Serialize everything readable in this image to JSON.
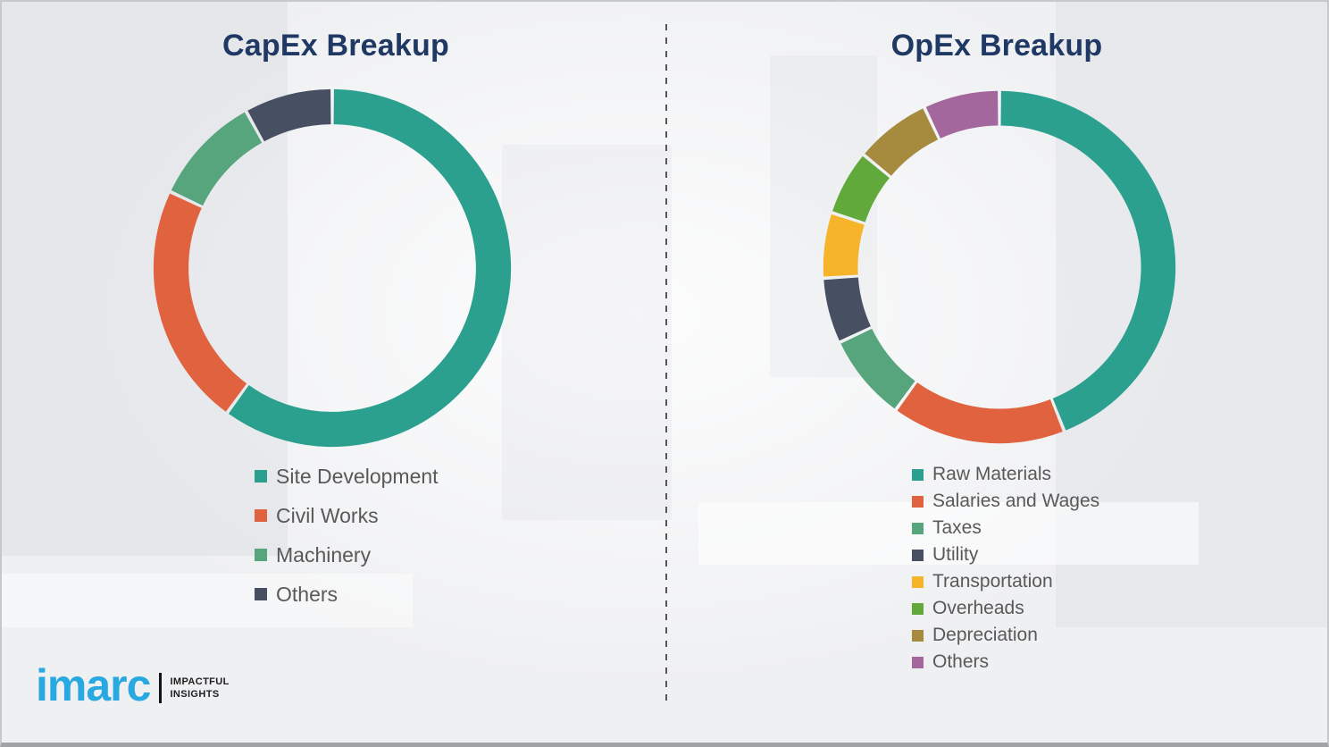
{
  "chart_data": [
    {
      "type": "pie",
      "subtype": "donut",
      "title": "CapEx Breakup",
      "categories": [
        "Site Development",
        "Civil Works",
        "Machinery",
        "Others"
      ],
      "values": [
        60,
        22,
        10,
        8
      ],
      "colors": [
        "#2ba08f",
        "#e0623f",
        "#57a57c",
        "#474f63"
      ],
      "legend_position": "below-left",
      "start_angle_deg": 0,
      "direction": "clockwise"
    },
    {
      "type": "pie",
      "subtype": "donut",
      "title": "OpEx Breakup",
      "categories": [
        "Raw Materials",
        "Salaries and Wages",
        "Taxes",
        "Utility",
        "Transportation",
        "Overheads",
        "Depreciation",
        "Others"
      ],
      "values": [
        44,
        16,
        8,
        6,
        6,
        6,
        7,
        7
      ],
      "colors": [
        "#2ba08f",
        "#e0623f",
        "#57a57c",
        "#474f63",
        "#f6b42a",
        "#62a93c",
        "#a68b3f",
        "#a3669d"
      ],
      "legend_position": "below-left",
      "start_angle_deg": 0,
      "direction": "clockwise"
    }
  ],
  "logo": {
    "brand": "imarc",
    "tagline_line1": "IMPACTFUL",
    "tagline_line2": "INSIGHTS",
    "brand_color": "#29a9e1"
  },
  "styles": {
    "title_color": "#1f3864",
    "legend_text_color": "#595959",
    "background_color": "#eff0f2",
    "divider_style": "vertical-dashed-gray"
  }
}
